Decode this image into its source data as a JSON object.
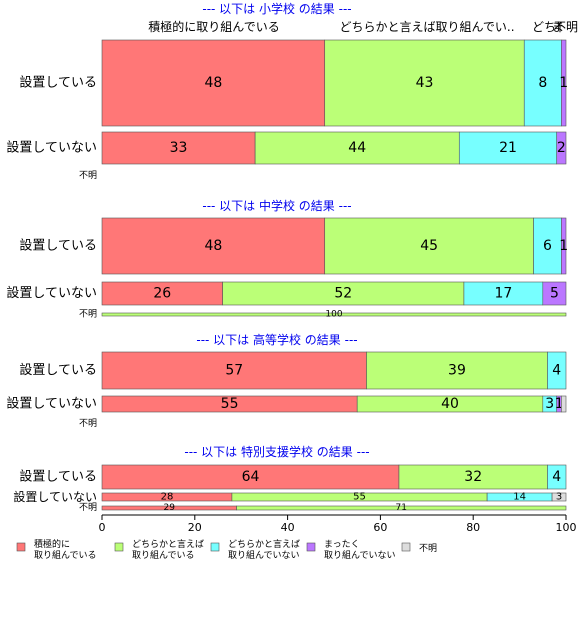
{
  "chart_data": {
    "type": "bar",
    "orientation": "horizontal-stacked-percent",
    "xlim": [
      0,
      100
    ],
    "x_ticks": [
      "0",
      "20",
      "40",
      "60",
      "80",
      "100"
    ],
    "series": [
      {
        "name": "積極的に取り組んでいる",
        "legend": [
          "積極的に",
          "取り組んでいる"
        ],
        "color": "#ff7777"
      },
      {
        "name": "どちらかと言えば取り組んでいる",
        "legend": [
          "どちらかと言えば",
          "取り組んでいる"
        ],
        "color": "#bbff77"
      },
      {
        "name": "どちらかと言えば取り組んでいない",
        "legend": [
          "どちらかと言えば",
          "取り組んでいない"
        ],
        "color": "#77ffff"
      },
      {
        "name": "まったく取り組んでいない",
        "legend": [
          "まったく",
          "取り組んでいない"
        ],
        "color": "#bb77ff"
      },
      {
        "name": "不明",
        "legend": [
          "不明"
        ],
        "color": "#dddddd"
      }
    ],
    "top_labels": [
      "積極的に取り組んでいる",
      "どちらかと言えば取り組んでい..",
      "どち",
      "ま",
      "不明"
    ],
    "panels": [
      {
        "title": "--- 以下は 小学校 の結果 ---",
        "rows": [
          {
            "label": "設置している",
            "values": [
              48,
              43,
              8,
              1,
              0
            ],
            "labels": [
              "48",
              "43",
              "8",
              "1",
              ""
            ]
          },
          {
            "label": "設置していない",
            "values": [
              33,
              44,
              21,
              2,
              0
            ],
            "labels": [
              "33",
              "44",
              "21",
              "2",
              ""
            ]
          },
          {
            "label": "不明",
            "values": [],
            "labels": []
          }
        ]
      },
      {
        "title": "--- 以下は 中学校 の結果 ---",
        "rows": [
          {
            "label": "設置している",
            "values": [
              48,
              45,
              6,
              1,
              0
            ],
            "labels": [
              "48",
              "45",
              "6",
              "1",
              ""
            ]
          },
          {
            "label": "設置していない",
            "values": [
              26,
              52,
              17,
              5,
              0
            ],
            "labels": [
              "26",
              "52",
              "17",
              "5",
              ""
            ]
          },
          {
            "label": "不明",
            "values": [
              0,
              100,
              0,
              0,
              0
            ],
            "labels": [
              "",
              "100",
              "",
              "",
              ""
            ]
          }
        ]
      },
      {
        "title": "--- 以下は 高等学校 の結果 ---",
        "rows": [
          {
            "label": "設置している",
            "values": [
              57,
              39,
              4,
              0,
              0
            ],
            "labels": [
              "57",
              "39",
              "4",
              "",
              ""
            ]
          },
          {
            "label": "設置していない",
            "values": [
              55,
              40,
              3,
              1,
              1
            ],
            "labels": [
              "55",
              "40",
              "3",
              "1",
              ""
            ]
          },
          {
            "label": "不明",
            "values": [],
            "labels": []
          }
        ]
      },
      {
        "title": "--- 以下は 特別支援学校 の結果 ---",
        "rows": [
          {
            "label": "設置している",
            "values": [
              64,
              32,
              4,
              0,
              0
            ],
            "labels": [
              "64",
              "32",
              "4",
              "",
              ""
            ]
          },
          {
            "label": "設置していない",
            "values": [
              28,
              55,
              14,
              0,
              3
            ],
            "labels": [
              "28",
              "55",
              "14",
              "",
              "3"
            ]
          },
          {
            "label": "不明",
            "values": [
              29,
              71,
              0,
              0,
              0
            ],
            "labels": [
              "29",
              "71",
              "",
              "",
              ""
            ]
          }
        ]
      }
    ]
  }
}
